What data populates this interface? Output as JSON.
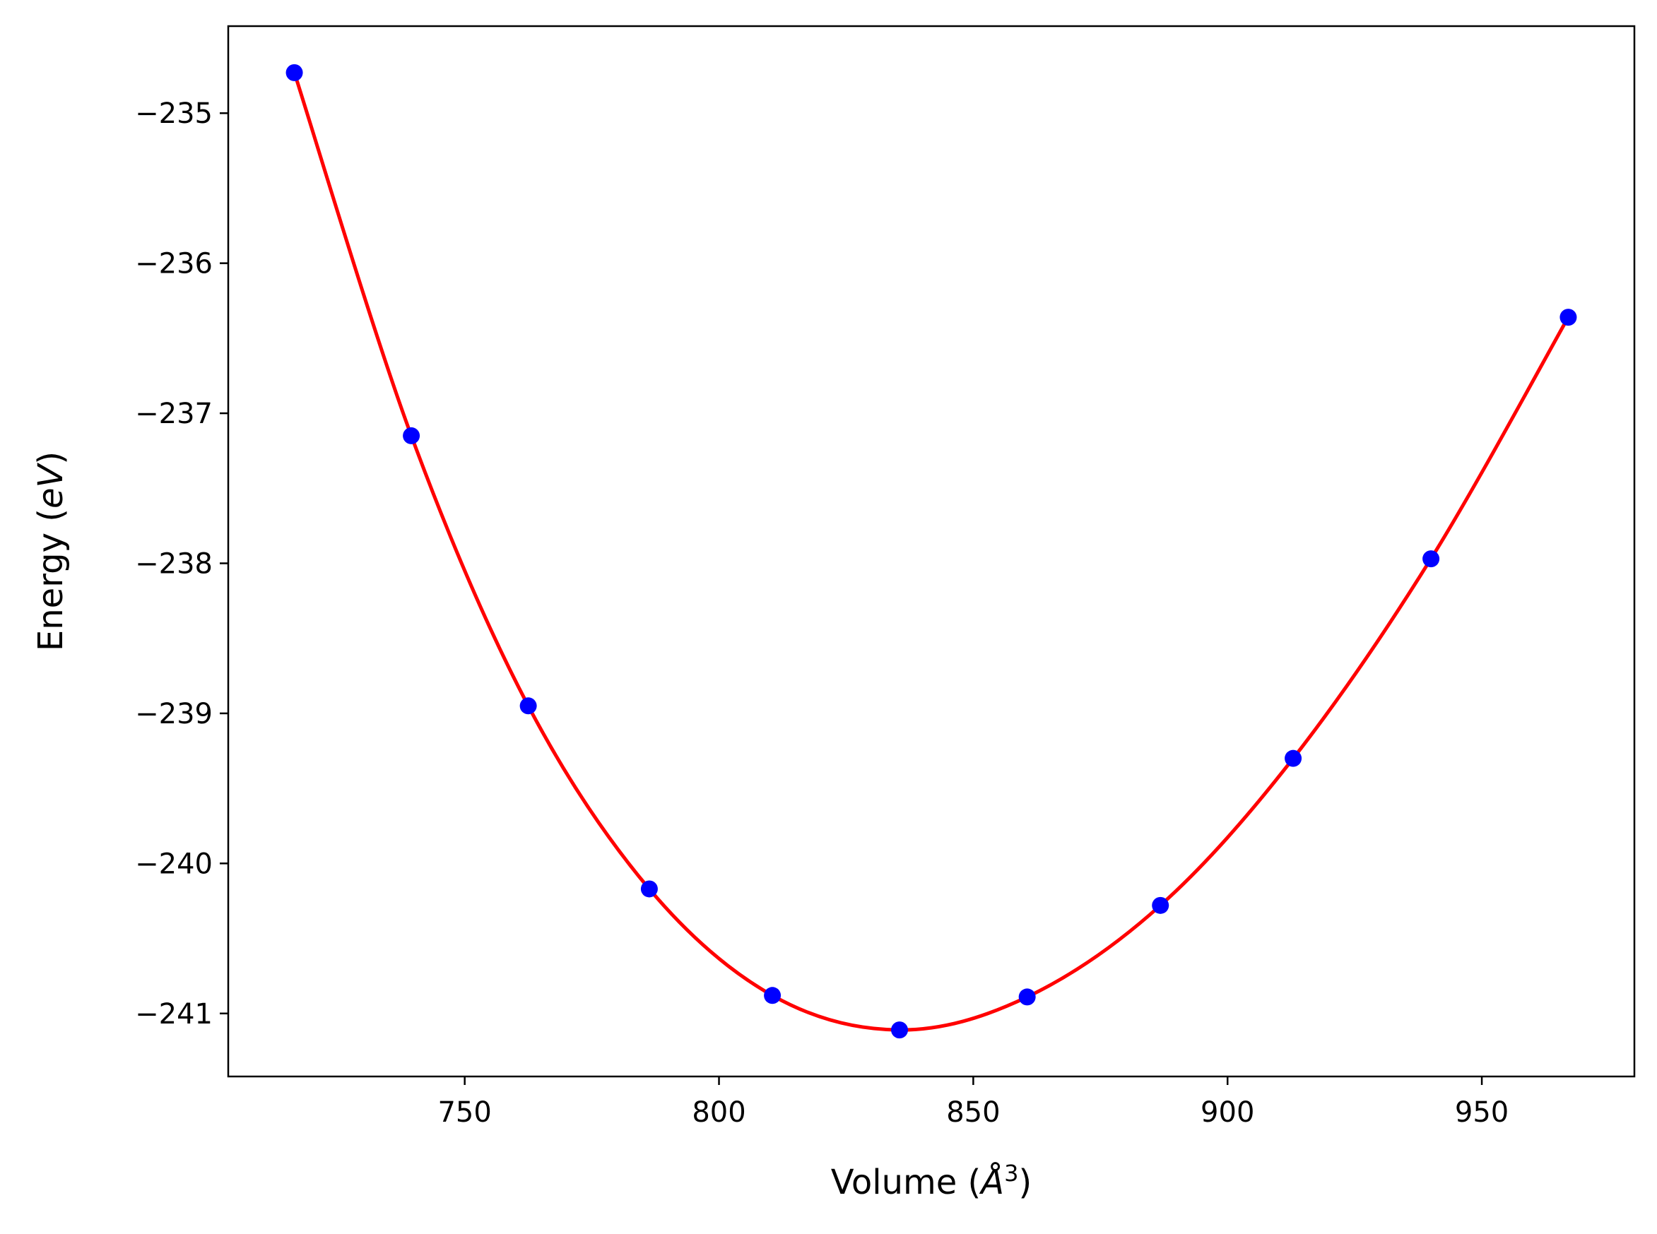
{
  "chart_data": {
    "type": "scatter",
    "title": "",
    "xlabel_main": "Volume (",
    "xlabel_symbol": "Å",
    "xlabel_sup": "3",
    "xlabel_end": ")",
    "ylabel_main": "Energy (",
    "ylabel_unit": "eV",
    "ylabel_end": ")",
    "xlim": [
      703.5,
      980
    ],
    "ylim": [
      -241.42,
      -234.42
    ],
    "grid": false,
    "xticks": [
      750,
      800,
      850,
      900,
      950
    ],
    "xtick_labels": [
      "750",
      "800",
      "850",
      "900",
      "950"
    ],
    "yticks": [
      -235,
      -236,
      -237,
      -238,
      -239,
      -240,
      -241
    ],
    "ytick_labels": [
      "−235",
      "−236",
      "−237",
      "−238",
      "−239",
      "−240",
      "−241"
    ],
    "series": [
      {
        "kind": "points",
        "color": "#0000ff",
        "x": [
          716.5,
          739.5,
          762.5,
          786.3,
          810.5,
          835.5,
          860.6,
          886.8,
          912.9,
          940.0,
          967.0
        ],
        "y": [
          -234.73,
          -237.15,
          -238.95,
          -240.17,
          -240.88,
          -241.11,
          -240.89,
          -240.28,
          -239.3,
          -237.97,
          -236.36
        ]
      },
      {
        "kind": "fit-curve",
        "color": "#ff0000",
        "x": [
          716.5,
          739.5,
          762.5,
          786.3,
          810.5,
          835.5,
          860.6,
          886.8,
          912.9,
          940.0,
          967.0
        ],
        "y": [
          -234.73,
          -237.15,
          -238.95,
          -240.17,
          -240.88,
          -241.11,
          -240.89,
          -240.28,
          -239.3,
          -237.97,
          -236.36
        ]
      }
    ]
  }
}
